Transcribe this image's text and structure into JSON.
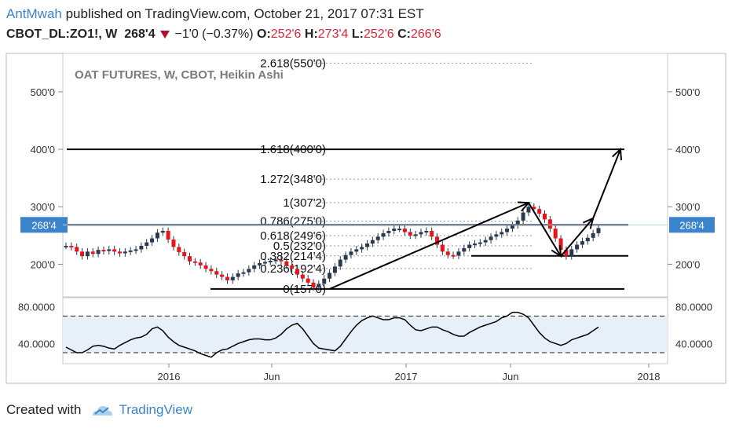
{
  "header": {
    "author": "AntMwah",
    "published": " published on TradingView.com, October 21, 2017 07:31 EST",
    "symbol": "CBOT_DL:ZO1!, W",
    "last": "268'4",
    "change": "−1'0 (−0.37%)",
    "o_label": "O:",
    "o_value": "252'6",
    "h_label": "H:",
    "h_value": "273'4",
    "l_label": "L:",
    "l_value": "252'6",
    "c_label": "C:",
    "c_value": "266'6"
  },
  "colors": {
    "up": "#2a3a4e",
    "down": "#e8141a",
    "accent": "#3c84c9",
    "price_tag": "#3c84c9",
    "osc_fill": "#e7f0f8"
  },
  "chart_data": [
    {
      "type": "candlestick",
      "title": "OAT FUTURES, W, CBOT, Heikin Ashi",
      "y_ticks": [
        "200'0",
        "300'0",
        "400'0",
        "500'0"
      ],
      "y_tick_values": [
        200,
        300,
        400,
        500
      ],
      "ylim": [
        150,
        560
      ],
      "x_ticks": [
        "2016",
        "Jun",
        "2017",
        "Jun",
        "2018"
      ],
      "last_price_label": "268'4",
      "last_price": 268.5,
      "series": [
        {
          "name": "candles",
          "values": [
            232,
            230,
            222,
            214,
            222,
            218,
            225,
            223,
            226,
            222,
            219,
            222,
            224,
            226,
            232,
            238,
            245,
            255,
            258,
            243,
            230,
            221,
            214,
            205,
            203,
            198,
            192,
            188,
            182,
            178,
            172,
            178,
            184,
            186,
            192,
            198,
            202,
            204,
            206,
            208,
            205,
            198,
            192,
            182,
            175,
            168,
            160,
            166,
            175,
            185,
            196,
            208,
            216,
            222,
            226,
            230,
            236,
            242,
            248,
            254,
            258,
            262,
            262,
            256,
            250,
            252,
            256,
            258,
            248,
            234,
            222,
            216,
            215,
            222,
            228,
            234,
            236,
            238,
            242,
            248,
            252,
            256,
            262,
            268,
            276,
            290,
            300,
            296,
            288,
            278,
            262,
            245,
            225,
            214,
            226,
            234,
            240,
            246,
            254,
            263
          ]
        }
      ],
      "fibonacci": [
        {
          "label": "0(157'0)",
          "value": 157
        },
        {
          "label": "0.236(192'4)",
          "value": 192.5
        },
        {
          "label": "0.382(214'4)",
          "value": 214.5
        },
        {
          "label": "0.5(232'0)",
          "value": 232
        },
        {
          "label": "0.618(249'6)",
          "value": 249.75
        },
        {
          "label": "0.786(275'0)",
          "value": 275
        },
        {
          "label": "1(307'2)",
          "value": 307.25
        },
        {
          "label": "1.272(348'0)",
          "value": 348
        },
        {
          "label": "1.618(400'0)",
          "value": 400
        },
        {
          "label": "2.618(550'0)",
          "value": 550
        }
      ],
      "horizontal_lines": [
        157,
        214.5,
        268.5,
        400
      ]
    },
    {
      "type": "line",
      "title": "",
      "y_ticks": [
        "40.0000",
        "80.0000"
      ],
      "y_tick_values": [
        40,
        80
      ],
      "ylim": [
        18,
        90
      ],
      "bands": [
        70,
        30
      ],
      "series": [
        {
          "values": [
            36,
            33,
            30,
            30,
            33,
            37,
            38,
            37,
            35,
            34,
            38,
            41,
            44,
            46,
            47,
            50,
            56,
            58,
            54,
            47,
            42,
            38,
            36,
            34,
            32,
            29,
            27,
            25,
            30,
            33,
            34,
            37,
            40,
            42,
            44,
            45,
            45,
            44,
            44,
            46,
            50,
            56,
            60,
            62,
            56,
            48,
            40,
            35,
            34,
            33,
            32,
            37,
            45,
            53,
            60,
            65,
            68,
            70,
            68,
            66,
            66,
            68,
            68,
            66,
            60,
            55,
            54,
            56,
            58,
            58,
            55,
            53,
            50,
            48,
            48,
            52,
            55,
            58,
            60,
            62,
            64,
            68,
            70,
            74,
            74,
            72,
            68,
            60,
            52,
            46,
            42,
            40,
            38,
            40,
            44,
            46,
            48,
            50,
            54,
            58
          ]
        }
      ]
    }
  ],
  "footer": {
    "created_with": "Created with",
    "brand": "TradingView"
  }
}
